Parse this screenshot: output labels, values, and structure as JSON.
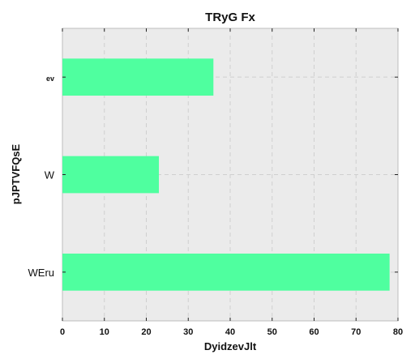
{
  "chart_data": {
    "type": "bar",
    "orientation": "horizontal",
    "title": "TRyG Fx",
    "xlabel": "DyidzevJlt",
    "ylabel": "pJPTVFQsE",
    "categories": [
      "ev",
      "W",
      "WEru"
    ],
    "values": [
      36,
      23,
      78
    ],
    "xlim": [
      0,
      80
    ],
    "xticks": [
      "0",
      "10",
      "20",
      "30",
      "40",
      "50",
      "60",
      "70",
      "80"
    ],
    "grid": true,
    "bar_color": "#4fff9f",
    "plot_background": "#ebebeb"
  }
}
